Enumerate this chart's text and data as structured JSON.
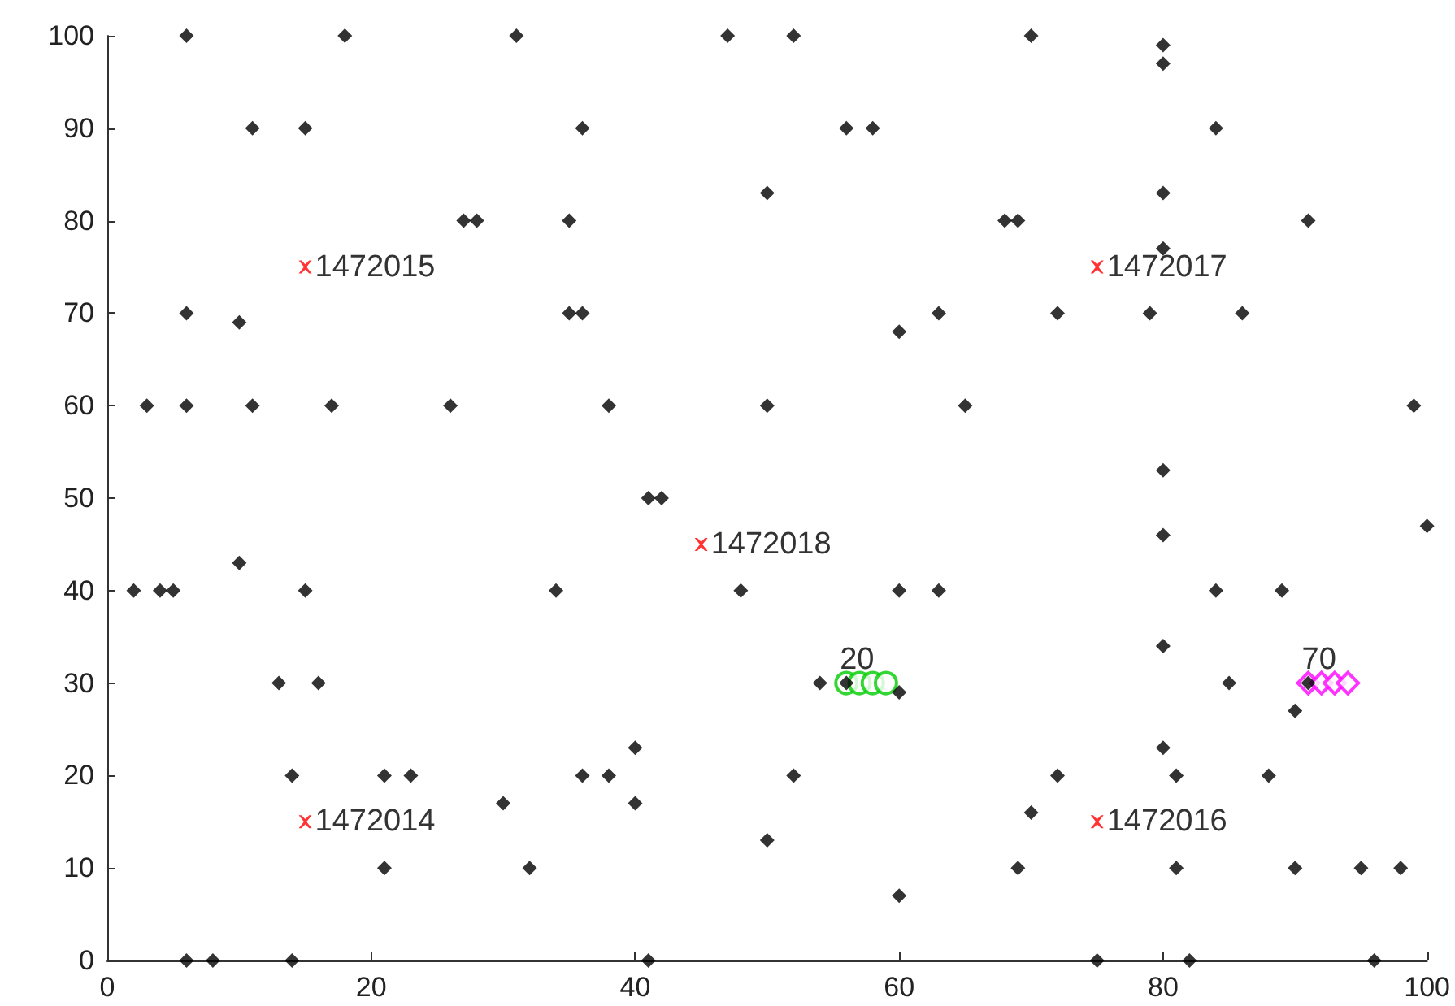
{
  "chart_data": {
    "type": "scatter",
    "xlim": [
      0,
      100
    ],
    "xticks": [
      0,
      20,
      40,
      60,
      80,
      100
    ],
    "ylim": [
      0,
      100
    ],
    "yticks": [
      0,
      10,
      20,
      30,
      40,
      50,
      60,
      70,
      80,
      90,
      100
    ],
    "series": [
      {
        "color": "#000000",
        "marker": "diamond",
        "x": [
          6,
          18,
          31,
          47,
          52,
          70,
          80,
          80,
          11,
          15,
          36,
          56,
          58,
          84,
          50,
          80,
          27,
          28,
          35,
          68,
          69,
          91,
          80,
          6,
          35,
          36,
          10,
          60,
          63,
          72,
          79,
          86,
          3,
          6,
          11,
          17,
          26,
          38,
          50,
          65,
          99,
          80,
          41,
          42,
          80,
          100,
          2,
          4,
          5,
          10,
          15,
          34,
          48,
          60,
          63,
          84,
          89,
          80,
          13,
          16,
          54,
          56,
          60,
          85,
          90,
          91,
          14,
          21,
          23,
          36,
          38,
          40,
          40,
          30,
          52,
          72,
          70,
          80,
          81,
          88,
          21,
          32,
          50,
          60,
          69,
          81,
          90,
          95,
          98,
          6,
          8,
          14,
          41,
          75,
          82,
          96
        ],
        "values": [
          100,
          100,
          100,
          100,
          100,
          100,
          99,
          97,
          90,
          90,
          90,
          90,
          90,
          90,
          83,
          83,
          80,
          80,
          80,
          80,
          80,
          80,
          77,
          70,
          70,
          70,
          69,
          68,
          70,
          70,
          70,
          70,
          60,
          60,
          60,
          60,
          60,
          60,
          60,
          60,
          60,
          53,
          50,
          50,
          46,
          47,
          40,
          40,
          40,
          43,
          40,
          40,
          40,
          40,
          40,
          40,
          40,
          34,
          30,
          30,
          30,
          30,
          29,
          30,
          27,
          30,
          20,
          20,
          20,
          20,
          20,
          23,
          17,
          17,
          20,
          20,
          16,
          23,
          20,
          20,
          10,
          10,
          13,
          7,
          10,
          10,
          10,
          10,
          10,
          0,
          0,
          0,
          0,
          0,
          0,
          0
        ]
      },
      {
        "color": "#ff0000",
        "marker": "cross",
        "x": [
          15,
          15,
          75,
          75,
          45
        ],
        "values": [
          15,
          75,
          15,
          75,
          45
        ]
      },
      {
        "color": "#00cc00",
        "marker": "circle",
        "x": [
          56,
          57,
          58,
          59
        ],
        "values": [
          30,
          30,
          30,
          30
        ]
      },
      {
        "color": "#ff00ff",
        "marker": "diamond",
        "x": [
          91,
          92,
          93,
          94
        ],
        "values": [
          30,
          30,
          30,
          30
        ]
      }
    ],
    "annotations": [
      {
        "text": "1472014",
        "x": 15,
        "y": 15
      },
      {
        "text": "1472015",
        "x": 15,
        "y": 75
      },
      {
        "text": "1472016",
        "x": 75,
        "y": 15
      },
      {
        "text": "1472017",
        "x": 75,
        "y": 75
      },
      {
        "text": "1472018",
        "x": 45,
        "y": 45
      },
      {
        "text": "20",
        "x": 56,
        "y": 30
      },
      {
        "text": "70",
        "x": 91,
        "y": 30
      }
    ]
  }
}
